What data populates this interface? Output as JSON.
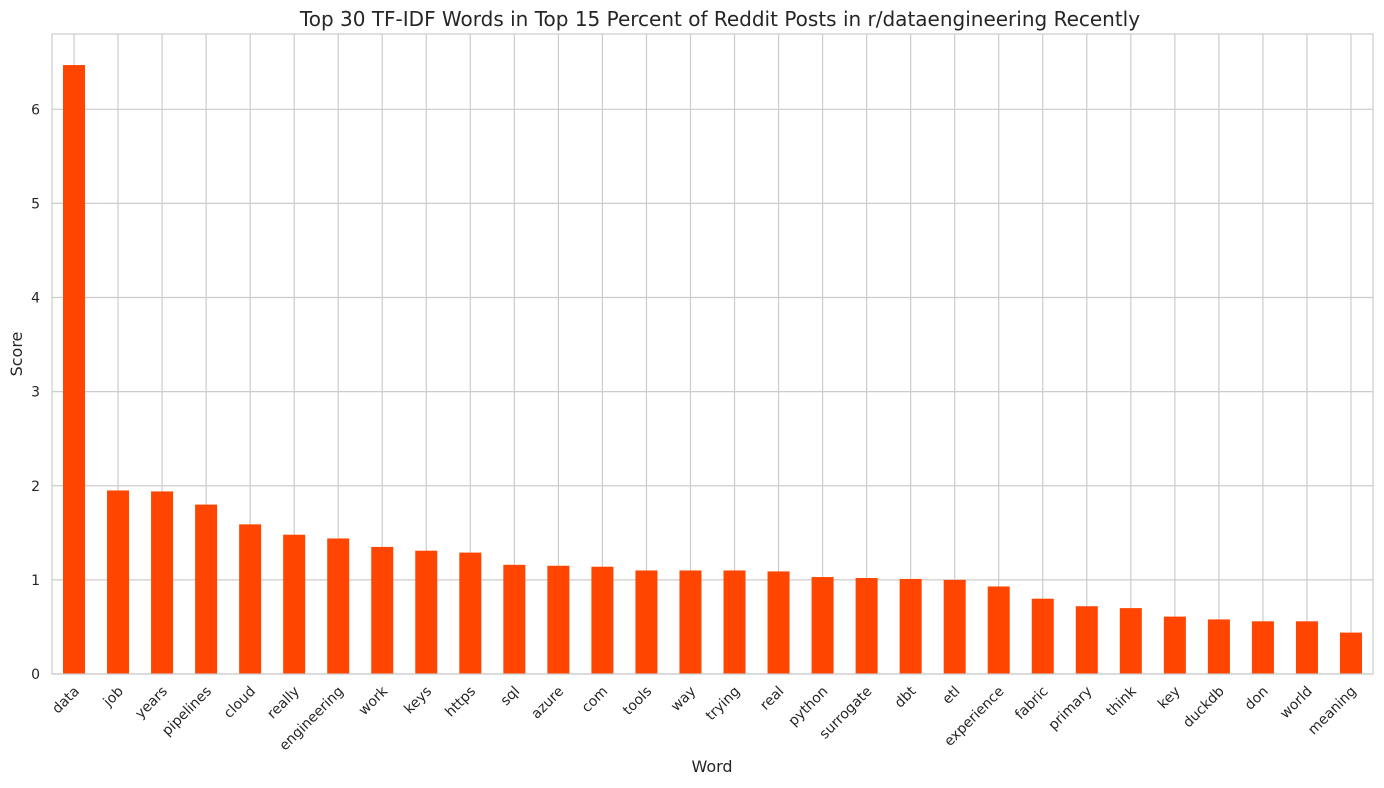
{
  "chart_data": {
    "type": "bar",
    "title": "Top 30 TF-IDF Words in Top 15 Percent of Reddit Posts in r/dataengineering Recently",
    "xlabel": "Word",
    "ylabel": "Score",
    "ylim": [
      0,
      6.8
    ],
    "yticks": [
      0,
      1,
      2,
      3,
      4,
      5,
      6
    ],
    "grid": true,
    "legend": "none",
    "bar_color": "#ff4500",
    "categories": [
      "data",
      "job",
      "years",
      "pipelines",
      "cloud",
      "really",
      "engineering",
      "work",
      "keys",
      "https",
      "sql",
      "azure",
      "com",
      "tools",
      "way",
      "trying",
      "real",
      "python",
      "surrogate",
      "dbt",
      "etl",
      "experience",
      "fabric",
      "primary",
      "think",
      "key",
      "duckdb",
      "don",
      "world",
      "meaning"
    ],
    "values": [
      6.47,
      1.95,
      1.94,
      1.8,
      1.59,
      1.48,
      1.44,
      1.35,
      1.31,
      1.29,
      1.16,
      1.15,
      1.14,
      1.1,
      1.1,
      1.1,
      1.09,
      1.03,
      1.02,
      1.01,
      1.0,
      0.93,
      0.8,
      0.72,
      0.7,
      0.61,
      0.58,
      0.56,
      0.56,
      0.44
    ]
  }
}
